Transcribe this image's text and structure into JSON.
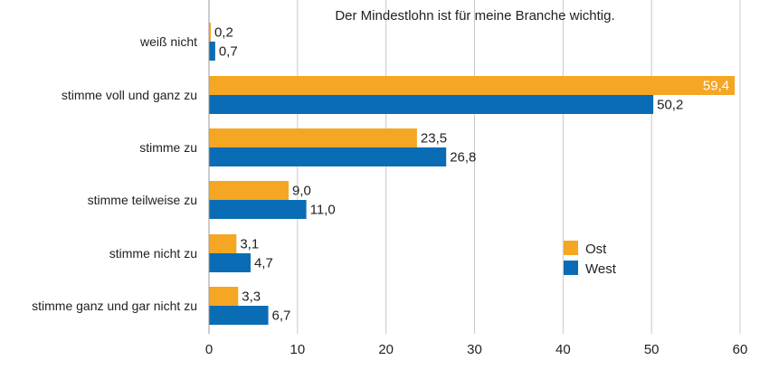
{
  "chart_data": {
    "type": "bar",
    "orientation": "horizontal",
    "title": "Der Mindestlohn ist für meine Branche wichtig.",
    "categories": [
      "weiß nicht",
      "stimme voll und ganz zu",
      "stimme zu",
      "stimme teilweise zu",
      "stimme nicht zu",
      "stimme ganz und gar nicht zu"
    ],
    "series": [
      {
        "name": "Ost",
        "color": "#f5a623",
        "values": [
          0.2,
          59.4,
          23.5,
          9.0,
          3.1,
          3.3
        ],
        "labels": [
          "0,2",
          "59,4",
          "23,5",
          "9,0",
          "3,1",
          "3,3"
        ]
      },
      {
        "name": "West",
        "color": "#0a6cb4",
        "values": [
          0.7,
          50.2,
          26.8,
          11.0,
          4.7,
          6.7
        ],
        "labels": [
          "0,7",
          "50,2",
          "26,8",
          "11,0",
          "4,7",
          "6,7"
        ]
      }
    ],
    "xlim": [
      0,
      60
    ],
    "xticks": [
      0,
      10,
      20,
      30,
      40,
      50,
      60
    ],
    "grid": true,
    "legend_position": "right"
  }
}
